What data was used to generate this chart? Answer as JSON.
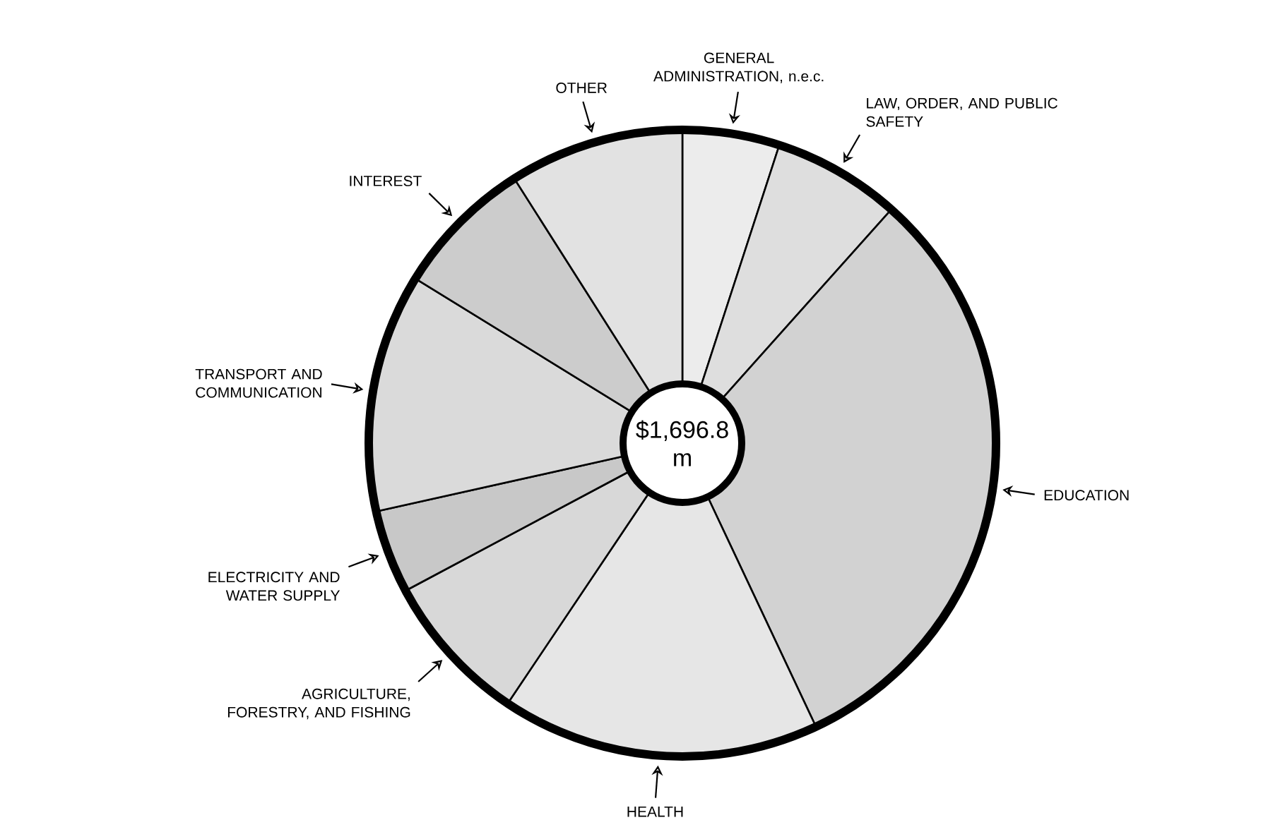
{
  "chart_data": {
    "type": "donut",
    "categories": [
      "GENERAL ADMINISTRATION, n.e.c.",
      "LAW, ORDER, AND PUBLIC SAFETY",
      "EDUCATION",
      "HEALTH",
      "AGRICULTURE, FORESTRY, AND FISHING",
      "ELECTRICITY AND WATER SUPPLY",
      "TRANSPORT AND COMMUNICATION",
      "INTEREST",
      "OTHER"
    ],
    "values": [
      5.0,
      6.6,
      31.4,
      16.4,
      7.8,
      4.3,
      12.3,
      7.2,
      9.0
    ],
    "colors": [
      "#ececec",
      "#dedede",
      "#d2d2d2",
      "#e6e6e6",
      "#d8d8d8",
      "#c8c8c8",
      "#dadada",
      "#cccccc",
      "#e2e2e2"
    ],
    "annotations": [
      "$1,696.8 m"
    ]
  }
}
